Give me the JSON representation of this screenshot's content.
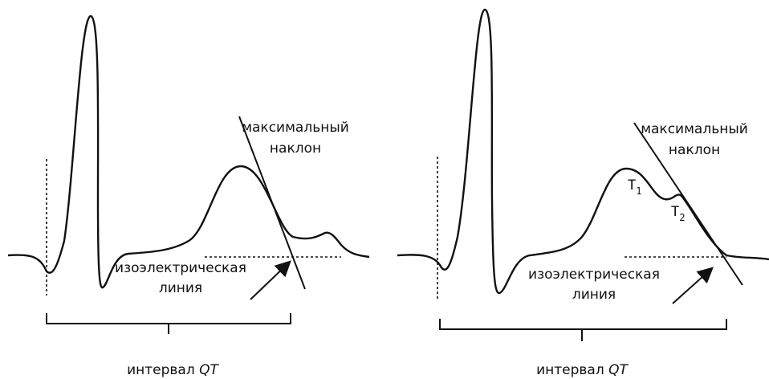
{
  "panels": [
    {
      "slope_label": [
        "максимальный",
        "наклон"
      ],
      "baseline_label": [
        "изоэлектрическая",
        "линия"
      ],
      "interval_label": {
        "text": "интервал",
        "italic": "QT"
      }
    },
    {
      "slope_label": [
        "максимальный",
        "наклон"
      ],
      "baseline_label": [
        "изоэлектрическая",
        "линия"
      ],
      "interval_label": {
        "text": "интервал",
        "italic": "QT"
      },
      "waves": [
        {
          "letter": "T",
          "index": "1"
        },
        {
          "letter": "T",
          "index": "2"
        }
      ]
    }
  ]
}
